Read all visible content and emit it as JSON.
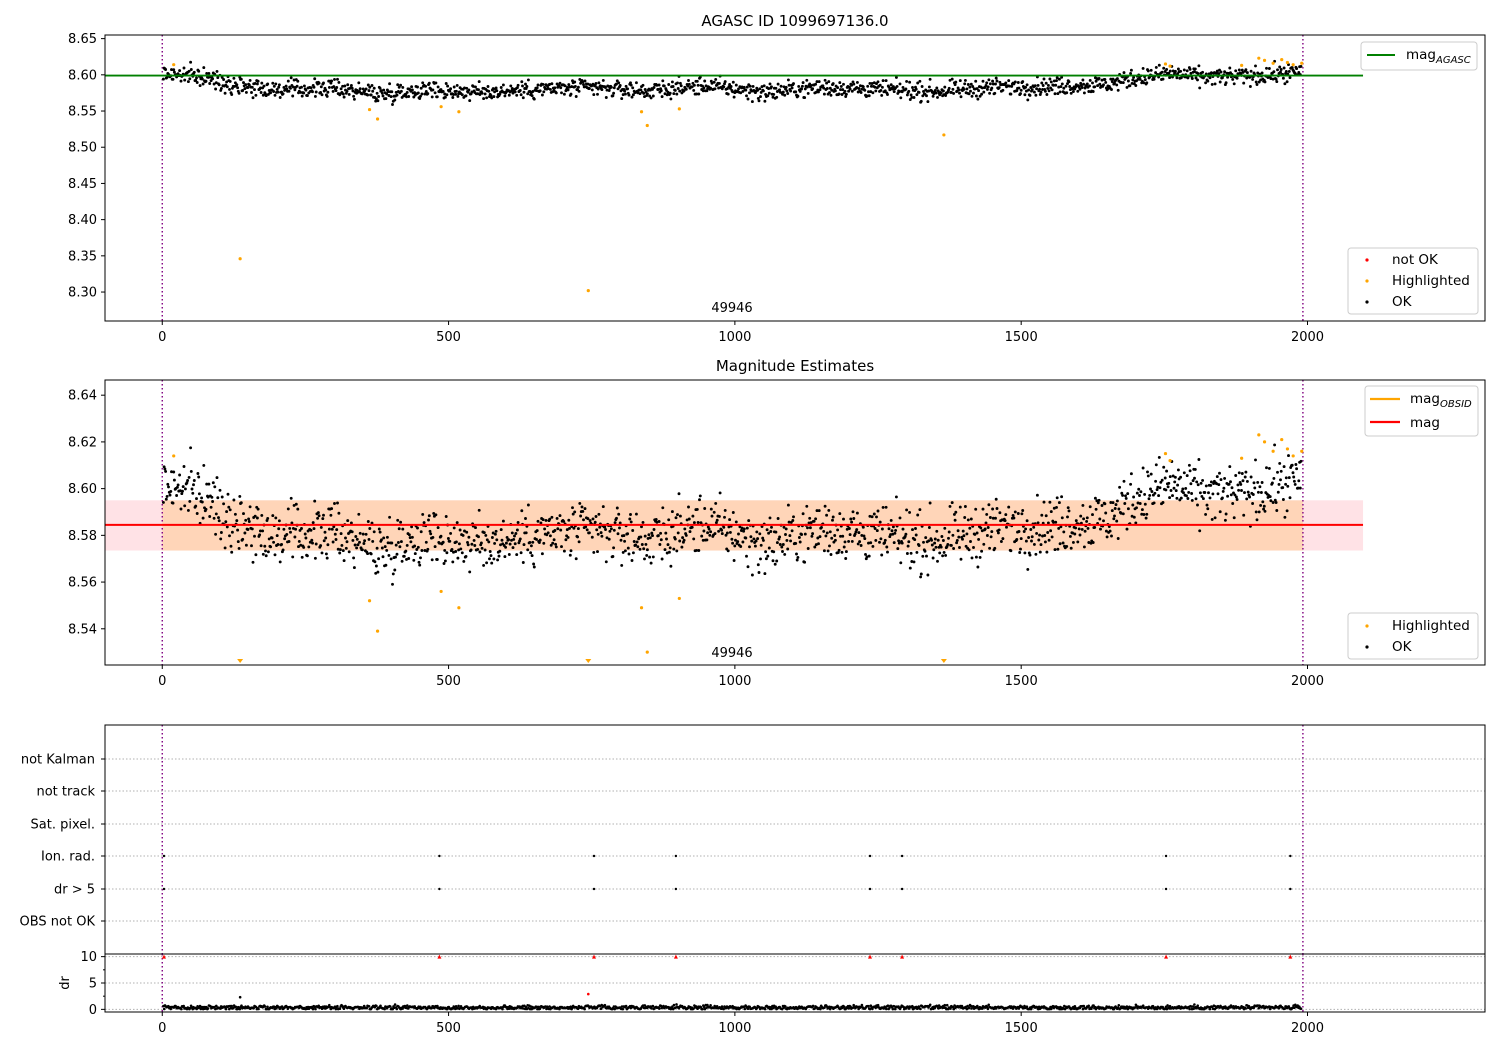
{
  "chart_data": [
    {
      "type": "scatter",
      "title": "AGASC ID 1099697136.0",
      "xlim": [
        -100,
        2310
      ],
      "ylim": [
        8.26,
        8.655
      ],
      "xticks": [
        "0",
        "500",
        "1000",
        "1500",
        "2000"
      ],
      "yticks": [
        "8.30",
        "8.35",
        "8.40",
        "8.45",
        "8.50",
        "8.55",
        "8.60",
        "8.65"
      ],
      "vlines": [
        0,
        1992
      ],
      "hline": {
        "name": "mag_AGASC",
        "y": 8.599,
        "x_end": 2097,
        "color": "#008000"
      },
      "annotation": {
        "text": "49946",
        "x": 996
      },
      "series": [
        {
          "name": "not OK",
          "color": "#ff0000",
          "points": []
        },
        {
          "name": "Highlighted",
          "color": "#ffa500",
          "points": [
            [
              20,
              8.614
            ],
            [
              136,
              8.346
            ],
            [
              362,
              8.552
            ],
            [
              376,
              8.539
            ],
            [
              487,
              8.556
            ],
            [
              518,
              8.549
            ],
            [
              744,
              8.302
            ],
            [
              837,
              8.549
            ],
            [
              847,
              8.53
            ],
            [
              903,
              8.553
            ],
            [
              1365,
              8.517
            ],
            [
              1752,
              8.615
            ],
            [
              1760,
              8.612
            ],
            [
              1885,
              8.613
            ],
            [
              1915,
              8.623
            ],
            [
              1925,
              8.62
            ],
            [
              1940,
              8.616
            ],
            [
              1955,
              8.621
            ],
            [
              1965,
              8.617
            ],
            [
              1975,
              8.614
            ],
            [
              1990,
              8.616
            ]
          ]
        },
        {
          "name": "OK",
          "color": "#000000",
          "points": []
        }
      ],
      "ok_trend": {
        "x": [
          0,
          60,
          120,
          200,
          300,
          380,
          460,
          550,
          650,
          750,
          850,
          950,
          1050,
          1150,
          1250,
          1350,
          1450,
          1550,
          1650,
          1700,
          1760,
          1820,
          1900,
          1990
        ],
        "y": [
          8.602,
          8.598,
          8.588,
          8.579,
          8.582,
          8.574,
          8.58,
          8.576,
          8.58,
          8.582,
          8.578,
          8.585,
          8.576,
          8.583,
          8.58,
          8.577,
          8.583,
          8.584,
          8.587,
          8.596,
          8.602,
          8.597,
          8.598,
          8.604
        ],
        "n": 1550,
        "spread": 0.006
      },
      "legend_top": [
        "mag_AGASC"
      ],
      "legend_bottom": [
        "not OK",
        "Highlighted",
        "OK"
      ]
    },
    {
      "type": "scatter",
      "title": "Magnitude Estimates",
      "xlim": [
        -100,
        2310
      ],
      "ylim": [
        8.5245,
        8.6465
      ],
      "xticks": [
        "0",
        "500",
        "1000",
        "1500",
        "2000"
      ],
      "yticks": [
        "8.54",
        "8.56",
        "8.58",
        "8.60",
        "8.62",
        "8.64"
      ],
      "vlines": [
        0,
        1992
      ],
      "band": {
        "y0": 8.5735,
        "y1": 8.595,
        "x_end": 2097
      },
      "hlines": [
        {
          "name": "mag",
          "y": 8.5845,
          "x_end": 2097,
          "color": "#ff0000"
        }
      ],
      "annotation": {
        "text": "49946",
        "x": 996
      },
      "series": [
        {
          "name": "Highlighted",
          "color": "#ffa500",
          "points": [
            [
              20,
              8.614
            ],
            [
              362,
              8.552
            ],
            [
              376,
              8.539
            ],
            [
              487,
              8.556
            ],
            [
              518,
              8.549
            ],
            [
              837,
              8.549
            ],
            [
              847,
              8.53
            ],
            [
              903,
              8.553
            ],
            [
              1752,
              8.615
            ],
            [
              1760,
              8.612
            ],
            [
              1885,
              8.613
            ],
            [
              1915,
              8.623
            ],
            [
              1925,
              8.62
            ],
            [
              1940,
              8.616
            ],
            [
              1955,
              8.621
            ],
            [
              1965,
              8.617
            ],
            [
              1975,
              8.614
            ],
            [
              1990,
              8.616
            ]
          ]
        },
        {
          "name": "OK",
          "color": "#000000",
          "points": []
        }
      ],
      "out_of_range_markers": [
        136,
        744,
        1365
      ],
      "ok_trend": {
        "x": [
          0,
          60,
          120,
          200,
          300,
          380,
          460,
          550,
          650,
          750,
          850,
          950,
          1050,
          1150,
          1250,
          1350,
          1450,
          1550,
          1650,
          1700,
          1760,
          1820,
          1900,
          1990
        ],
        "y": [
          8.602,
          8.598,
          8.588,
          8.579,
          8.582,
          8.574,
          8.58,
          8.576,
          8.58,
          8.582,
          8.578,
          8.585,
          8.576,
          8.583,
          8.58,
          8.577,
          8.583,
          8.584,
          8.587,
          8.596,
          8.602,
          8.597,
          8.598,
          8.604
        ],
        "n": 1550,
        "spread": 0.006
      },
      "legend_top": [
        "mag_OBSID",
        "mag"
      ],
      "legend_bottom": [
        "Highlighted",
        "OK"
      ]
    },
    {
      "type": "scatter",
      "xlim": [
        -100,
        2310
      ],
      "xticks": [
        "0",
        "500",
        "1000",
        "1500",
        "2000"
      ],
      "vlines": [
        0,
        1992
      ],
      "flag_rows": [
        "not Kalman",
        "not track",
        "Sat. pixel.",
        "Ion. rad.",
        "dr > 5",
        "OBS not OK"
      ],
      "flag_points": {
        "Ion. rad.": [
          3,
          484,
          754,
          897,
          1236,
          1292,
          1753,
          1970
        ],
        "dr > 5": [
          3,
          484,
          754,
          897,
          1236,
          1292,
          1753,
          1970
        ]
      }
    },
    {
      "type": "scatter",
      "ylabel": "dr",
      "xlim": [
        -100,
        2310
      ],
      "ylim": [
        -0.5,
        10.5
      ],
      "xticks": [
        "0",
        "500",
        "1000",
        "1500",
        "2000"
      ],
      "yticks": [
        "0",
        "5",
        "10"
      ],
      "vlines": [
        0,
        1992
      ],
      "capped_markers": [
        3,
        484,
        754,
        897,
        1236,
        1292,
        1753,
        1970
      ],
      "points": [
        [
          136,
          2.3
        ],
        [
          744,
          2.9
        ]
      ],
      "baseline": {
        "mean": 0.35,
        "spread": 0.2,
        "n": 1400
      }
    }
  ]
}
